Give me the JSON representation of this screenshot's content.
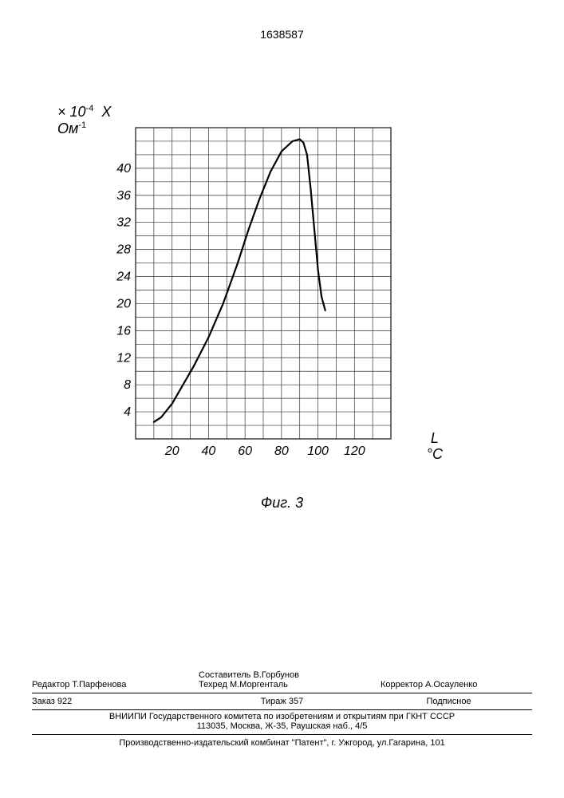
{
  "doc_number": "1638587",
  "chart": {
    "type": "line",
    "y_axis_label_top": "× 10",
    "y_axis_exp": "-4",
    "y_axis_symbol": "X",
    "y_axis_unit": "Ом",
    "y_axis_unit_exp": "-1",
    "x_axis_symbol": "L",
    "x_axis_unit": "°C",
    "caption": "Фиг. 3",
    "xlim": [
      0,
      140
    ],
    "ylim": [
      0,
      46
    ],
    "x_ticks": [
      20,
      40,
      60,
      80,
      100,
      120
    ],
    "y_ticks": [
      4,
      8,
      12,
      16,
      20,
      24,
      28,
      32,
      36,
      40
    ],
    "grid_x_step": 10,
    "grid_y_step": 2,
    "grid_color": "#333333",
    "background_color": "#ffffff",
    "line_color": "#000000",
    "line_width": 2.2,
    "tick_fontsize": 16,
    "data": [
      {
        "x": 10,
        "y": 2.5
      },
      {
        "x": 14,
        "y": 3.2
      },
      {
        "x": 20,
        "y": 5.2
      },
      {
        "x": 26,
        "y": 8.0
      },
      {
        "x": 32,
        "y": 10.8
      },
      {
        "x": 40,
        "y": 15.0
      },
      {
        "x": 48,
        "y": 20.0
      },
      {
        "x": 56,
        "y": 26.0
      },
      {
        "x": 62,
        "y": 31.0
      },
      {
        "x": 68,
        "y": 35.5
      },
      {
        "x": 74,
        "y": 39.5
      },
      {
        "x": 80,
        "y": 42.5
      },
      {
        "x": 86,
        "y": 44.0
      },
      {
        "x": 90,
        "y": 44.3
      },
      {
        "x": 92,
        "y": 43.8
      },
      {
        "x": 94,
        "y": 42.0
      },
      {
        "x": 96,
        "y": 37.0
      },
      {
        "x": 98,
        "y": 31.0
      },
      {
        "x": 100,
        "y": 25.0
      },
      {
        "x": 102,
        "y": 21.0
      },
      {
        "x": 104,
        "y": 19.0
      }
    ]
  },
  "footer": {
    "editor_label": "Редактор ",
    "editor_name": "Т.Парфенова",
    "compiler_label": "Составитель ",
    "compiler_name": "В.Горбунов",
    "techred_label": "Техред ",
    "techred_name": "М.Моргенталь",
    "corrector_label": "Корректор ",
    "corrector_name": "А.Осауленко",
    "order_label": "Заказ ",
    "order_no": "922",
    "tirazh_label": "Тираж ",
    "tirazh_no": "357",
    "subscription": "Подписное",
    "org": "ВНИИПИ Государственного комитета по изобретениям и открытиям при ГКНТ СССР",
    "address": "113035, Москва, Ж-35, Раушская наб., 4/5",
    "publisher": "Производственно-издательский комбинат \"Патент\", г. Ужгород, ул.Гагарина, 101"
  }
}
